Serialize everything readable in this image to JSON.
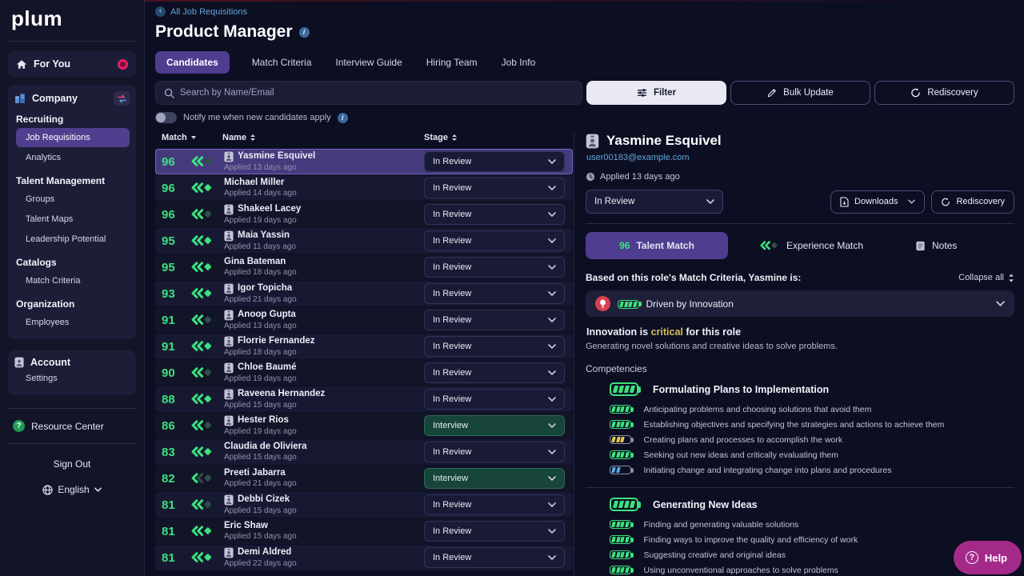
{
  "brand": {
    "logo": "plum"
  },
  "icons": {
    "info": "i",
    "help": "?",
    "question": "?",
    "back": "‹"
  },
  "colors": {
    "accent_purple": "#4f3d90",
    "match_green": "#3ce17e",
    "link_blue": "#62a5da",
    "critical_yellow": "#d9bd55",
    "battery_yellow": "#e2c84e",
    "battery_blue": "#55a9e9",
    "interview_green": "#17453a",
    "help_magenta": "#a42a8a",
    "selected_row": "#453a7c"
  },
  "sidebar": {
    "for_you_label": "For You",
    "company_label": "Company",
    "sections": [
      {
        "heading": "Recruiting",
        "items": [
          {
            "label": "Job Requisitions",
            "active": true
          },
          {
            "label": "Analytics",
            "active": false
          }
        ]
      },
      {
        "heading": "Talent Management",
        "items": [
          {
            "label": "Groups"
          },
          {
            "label": "Talent Maps"
          },
          {
            "label": "Leadership Potential"
          }
        ]
      },
      {
        "heading": "Catalogs",
        "items": [
          {
            "label": "Match Criteria"
          }
        ]
      },
      {
        "heading": "Organization",
        "items": [
          {
            "label": "Employees"
          }
        ]
      }
    ],
    "account_label": "Account",
    "account_items": [
      {
        "label": "Settings"
      }
    ],
    "resource_center": "Resource Center",
    "sign_out": "Sign Out",
    "language": "English"
  },
  "header": {
    "breadcrumb": "All Job Requisitions",
    "title": "Product Manager",
    "tabs": [
      {
        "label": "Candidates",
        "active": true
      },
      {
        "label": "Match Criteria"
      },
      {
        "label": "Interview Guide"
      },
      {
        "label": "Hiring Team"
      },
      {
        "label": "Job Info"
      }
    ],
    "search_placeholder": "Search by Name/Email",
    "filter_label": "Filter",
    "bulk_update_label": "Bulk Update",
    "rediscovery_label": "Rediscovery",
    "notify_label": "Notify me when new candidates apply",
    "notify_on": false
  },
  "table": {
    "columns": [
      "Match",
      "Name",
      "Stage"
    ],
    "rows": [
      {
        "score": 96,
        "name": "Yasmine Esquivel",
        "applied": "Applied 13 days ago",
        "stage": "In Review",
        "selected": true,
        "card_icon": true,
        "chev1": true,
        "chev2": true,
        "diamond": false
      },
      {
        "score": 96,
        "name": "Michael Miller",
        "applied": "Applied 14 days ago",
        "stage": "In Review",
        "selected": false,
        "card_icon": false,
        "chev1": true,
        "chev2": true,
        "diamond": true
      },
      {
        "score": 96,
        "name": "Shakeel Lacey",
        "applied": "Applied 19 days ago",
        "stage": "In Review",
        "selected": false,
        "card_icon": true,
        "chev1": true,
        "chev2": true,
        "diamond": false
      },
      {
        "score": 95,
        "name": "Maia Yassin",
        "applied": "Applied 11 days ago",
        "stage": "In Review",
        "selected": false,
        "card_icon": true,
        "chev1": true,
        "chev2": true,
        "diamond": true
      },
      {
        "score": 95,
        "name": "Gina Bateman",
        "applied": "Applied 18 days ago",
        "stage": "In Review",
        "selected": false,
        "card_icon": false,
        "chev1": true,
        "chev2": true,
        "diamond": true
      },
      {
        "score": 93,
        "name": "Igor Topicha",
        "applied": "Applied 21 days ago",
        "stage": "In Review",
        "selected": false,
        "card_icon": true,
        "chev1": true,
        "chev2": true,
        "diamond": true
      },
      {
        "score": 91,
        "name": "Anoop Gupta",
        "applied": "Applied 13 days ago",
        "stage": "In Review",
        "selected": false,
        "card_icon": true,
        "chev1": true,
        "chev2": true,
        "diamond": false
      },
      {
        "score": 91,
        "name": "Florrie Fernandez",
        "applied": "Applied 18 days ago",
        "stage": "In Review",
        "selected": false,
        "card_icon": true,
        "chev1": true,
        "chev2": true,
        "diamond": true
      },
      {
        "score": 90,
        "name": "Chloe Baumé",
        "applied": "Applied 19 days ago",
        "stage": "In Review",
        "selected": false,
        "card_icon": true,
        "chev1": true,
        "chev2": true,
        "diamond": false
      },
      {
        "score": 88,
        "name": "Raveena Hernandez",
        "applied": "Applied 15 days ago",
        "stage": "In Review",
        "selected": false,
        "card_icon": true,
        "chev1": true,
        "chev2": true,
        "diamond": true
      },
      {
        "score": 86,
        "name": "Hester Rios",
        "applied": "Applied 19 days ago",
        "stage": "Interview",
        "selected": false,
        "card_icon": true,
        "chev1": true,
        "chev2": true,
        "diamond": false
      },
      {
        "score": 83,
        "name": "Claudia de Oliviera",
        "applied": "Applied 15 days ago",
        "stage": "In Review",
        "selected": false,
        "card_icon": false,
        "chev1": true,
        "chev2": true,
        "diamond": true
      },
      {
        "score": 82,
        "name": "Preeti Jabarra",
        "applied": "Applied 21 days ago",
        "stage": "Interview",
        "selected": false,
        "card_icon": false,
        "chev1": true,
        "chev2": false,
        "diamond": false
      },
      {
        "score": 81,
        "name": "Debbi Cizek",
        "applied": "Applied 15 days ago",
        "stage": "In Review",
        "selected": false,
        "card_icon": true,
        "chev1": true,
        "chev2": true,
        "diamond": false
      },
      {
        "score": 81,
        "name": "Eric Shaw",
        "applied": "Applied 15 days ago",
        "stage": "In Review",
        "selected": false,
        "card_icon": false,
        "chev1": true,
        "chev2": true,
        "diamond": true
      },
      {
        "score": 81,
        "name": "Demi Aldred",
        "applied": "Applied 22 days ago",
        "stage": "In Review",
        "selected": false,
        "card_icon": true,
        "chev1": true,
        "chev2": true,
        "diamond": true
      }
    ]
  },
  "detail": {
    "name": "Yasmine Esquivel",
    "email": "user00183@example.com",
    "applied": "Applied 13 days ago",
    "stage": "In Review",
    "downloads_label": "Downloads",
    "rediscovery_label": "Rediscovery",
    "tabs": {
      "talent_score": "96",
      "talent_label": "Talent Match",
      "experience_label": "Experience Match",
      "notes_label": "Notes"
    },
    "match_heading": "Based on this role's Match Criteria, Yasmine is:",
    "collapse_all": "Collapse all",
    "accordion_label": "Driven by Innovation",
    "importance": {
      "prefix": "Innovation is ",
      "em": "critical",
      "suffix": " for this role"
    },
    "importance_desc": "Generating novel solutions and creative ideas to solve problems.",
    "competencies_label": "Competencies",
    "groups": [
      {
        "title": "Formulating Plans to Implementation",
        "color": "green",
        "level": 4,
        "items": [
          {
            "text": "Anticipating problems and choosing solutions that avoid them",
            "color": "green",
            "level": 4
          },
          {
            "text": "Establishing objectives and specifying the strategies and actions to achieve them",
            "color": "green",
            "level": 4
          },
          {
            "text": "Creating plans and processes to accomplish the work",
            "color": "yellow",
            "level": 3
          },
          {
            "text": "Seeking out new ideas and critically evaluating them",
            "color": "green",
            "level": 4
          },
          {
            "text": "Initiating change and integrating change into plans and procedures",
            "color": "blue",
            "level": 2
          }
        ]
      },
      {
        "title": "Generating New Ideas",
        "color": "green",
        "level": 4,
        "items": [
          {
            "text": "Finding and generating valuable solutions",
            "color": "green",
            "level": 4
          },
          {
            "text": "Finding ways to improve the quality and efficiency of work",
            "color": "green",
            "level": 4
          },
          {
            "text": "Suggesting creative and original ideas",
            "color": "green",
            "level": 4
          },
          {
            "text": "Using unconventional approaches to solve problems",
            "color": "green",
            "level": 4
          }
        ]
      }
    ],
    "help_label": "Help"
  }
}
